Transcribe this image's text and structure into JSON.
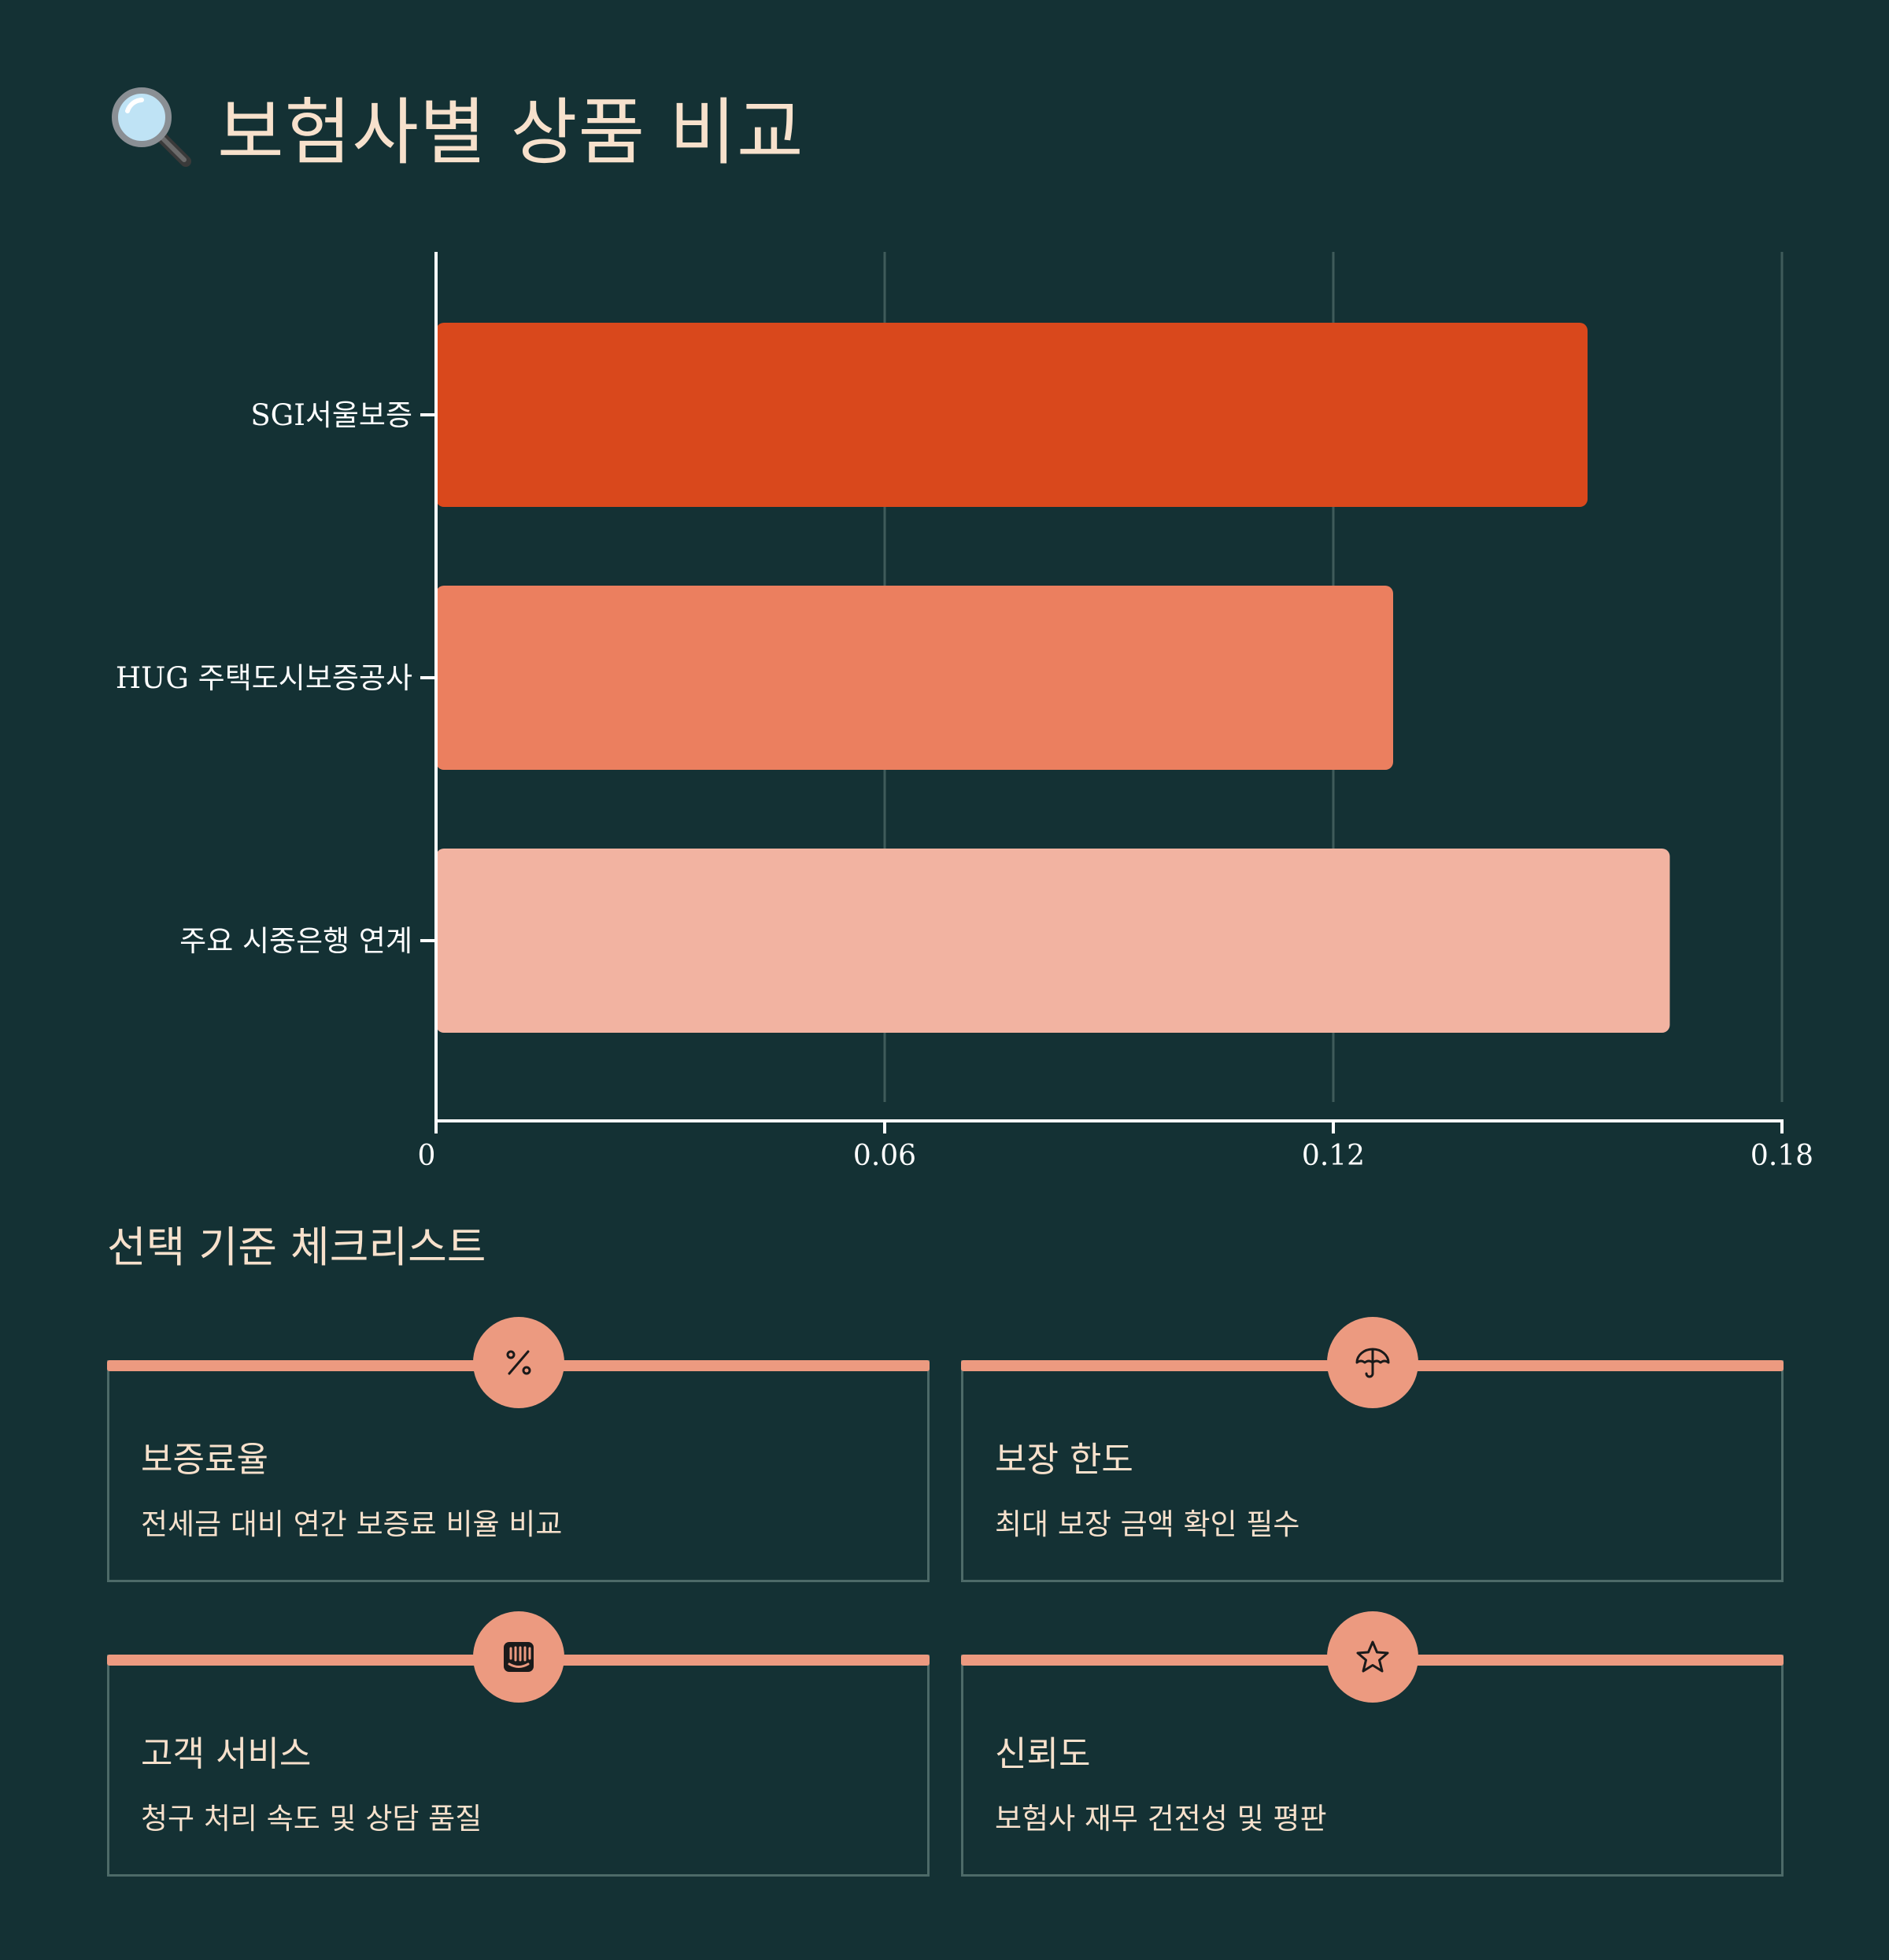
{
  "header": {
    "title": "보험사별 상품 비교",
    "icon": "magnifier-icon"
  },
  "chart_data": {
    "type": "bar",
    "orientation": "horizontal",
    "categories": [
      "SGI서울보증",
      "HUG 주택도시보증공사",
      "주요 시중은행 연계"
    ],
    "values": [
      0.154,
      0.128,
      0.165
    ],
    "xlim": [
      0,
      0.18
    ],
    "xticks": [
      "0",
      "0.06",
      "0.12",
      "0.18"
    ],
    "grid": true,
    "colors": [
      "#d9481c",
      "#eb7f5f",
      "#f2b3a1"
    ]
  },
  "checklist": {
    "title": "선택 기준 체크리스트",
    "items": [
      {
        "title": "보증료율",
        "desc": "전세금 대비 연간 보증료 비율 비교",
        "icon": "percent-icon"
      },
      {
        "title": "보장 한도",
        "desc": "최대 보장 금액 확인 필수",
        "icon": "umbrella-icon"
      },
      {
        "title": "고객 서비스",
        "desc": "청구 처리 속도 및 상담 품질",
        "icon": "chat-icon"
      },
      {
        "title": "신뢰도",
        "desc": "보험사 재무 건전성 및 평판",
        "icon": "star-icon"
      }
    ]
  },
  "colors": {
    "background": "#143134",
    "accent": "#ec9a80",
    "text": "#f7e1cc"
  }
}
